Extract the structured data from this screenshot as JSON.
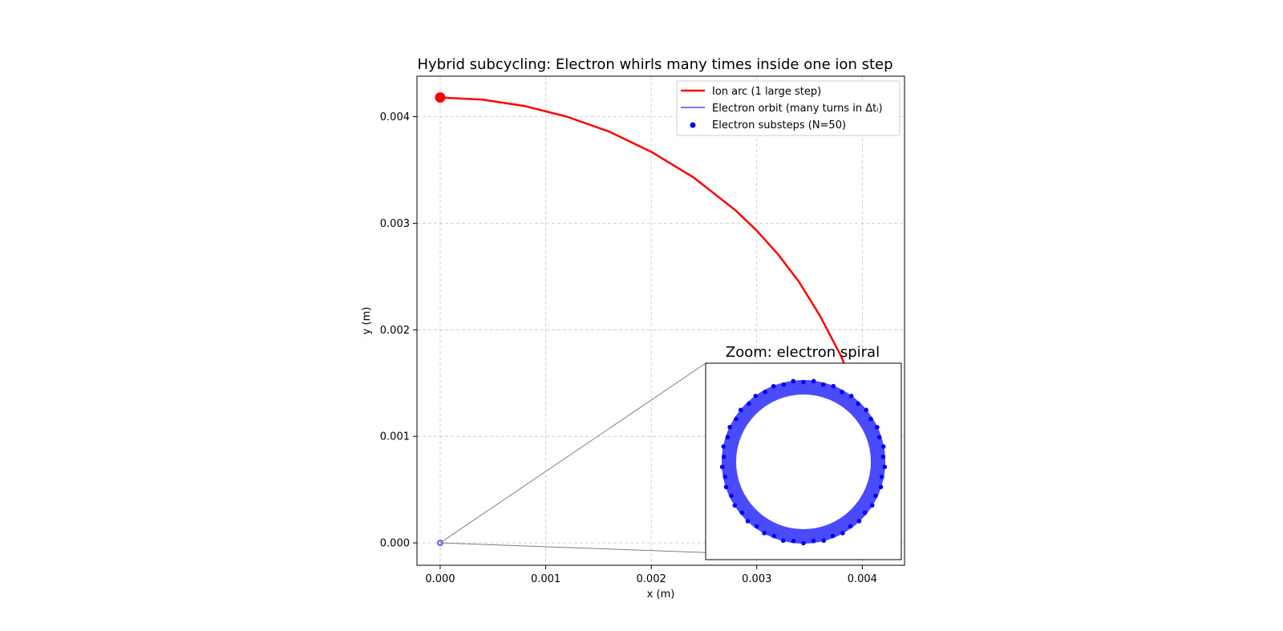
{
  "chart_data": {
    "type": "line",
    "title": "Hybrid subcycling: Electron whirls many times inside one ion step",
    "xlabel": "x (m)",
    "ylabel": "y (m)",
    "xlim": [
      -0.00022,
      0.0044
    ],
    "ylim": [
      -0.00021,
      0.00438
    ],
    "xticks": [
      0.0,
      0.001,
      0.002,
      0.003,
      0.004
    ],
    "xtick_labels": [
      "0.000",
      "0.001",
      "0.002",
      "0.003",
      "0.004"
    ],
    "yticks": [
      0.0,
      0.001,
      0.002,
      0.003,
      0.004
    ],
    "ytick_labels": [
      "0.000",
      "0.001",
      "0.002",
      "0.003",
      "0.004"
    ],
    "grid": true,
    "legend_position": "top-right",
    "series": [
      {
        "name": "Ion arc (1 large step)",
        "kind": "line",
        "color": "#ff0000",
        "start_marker": {
          "x": 0.0,
          "y": 0.00418
        },
        "points": [
          {
            "x": 0.0,
            "y": 0.00418
          },
          {
            "x": 0.0004,
            "y": 0.00416
          },
          {
            "x": 0.0008,
            "y": 0.0041
          },
          {
            "x": 0.0012,
            "y": 0.004
          },
          {
            "x": 0.0016,
            "y": 0.00386
          },
          {
            "x": 0.002,
            "y": 0.00367
          },
          {
            "x": 0.0024,
            "y": 0.00343
          },
          {
            "x": 0.0028,
            "y": 0.00312
          },
          {
            "x": 0.003,
            "y": 0.00293
          },
          {
            "x": 0.0032,
            "y": 0.00271
          },
          {
            "x": 0.0034,
            "y": 0.00245
          },
          {
            "x": 0.0036,
            "y": 0.00213
          },
          {
            "x": 0.0038,
            "y": 0.00175
          },
          {
            "x": 0.00395,
            "y": 0.00138
          },
          {
            "x": 0.00408,
            "y": 0.00095
          },
          {
            "x": 0.00418,
            "y": 0.0005
          },
          {
            "x": 0.00422,
            "y": 0.0002
          }
        ]
      },
      {
        "name": "Electron orbit (many turns in Δtᵢ)",
        "kind": "line",
        "color": "#4a4aff"
      },
      {
        "name": "Electron substeps (N=50)",
        "kind": "scatter",
        "color": "#0000ff",
        "count": 50
      }
    ],
    "inset": {
      "title": "Zoom: electron spiral",
      "center": {
        "x": 0.0,
        "y": 0.0
      },
      "substeps": 50
    }
  }
}
